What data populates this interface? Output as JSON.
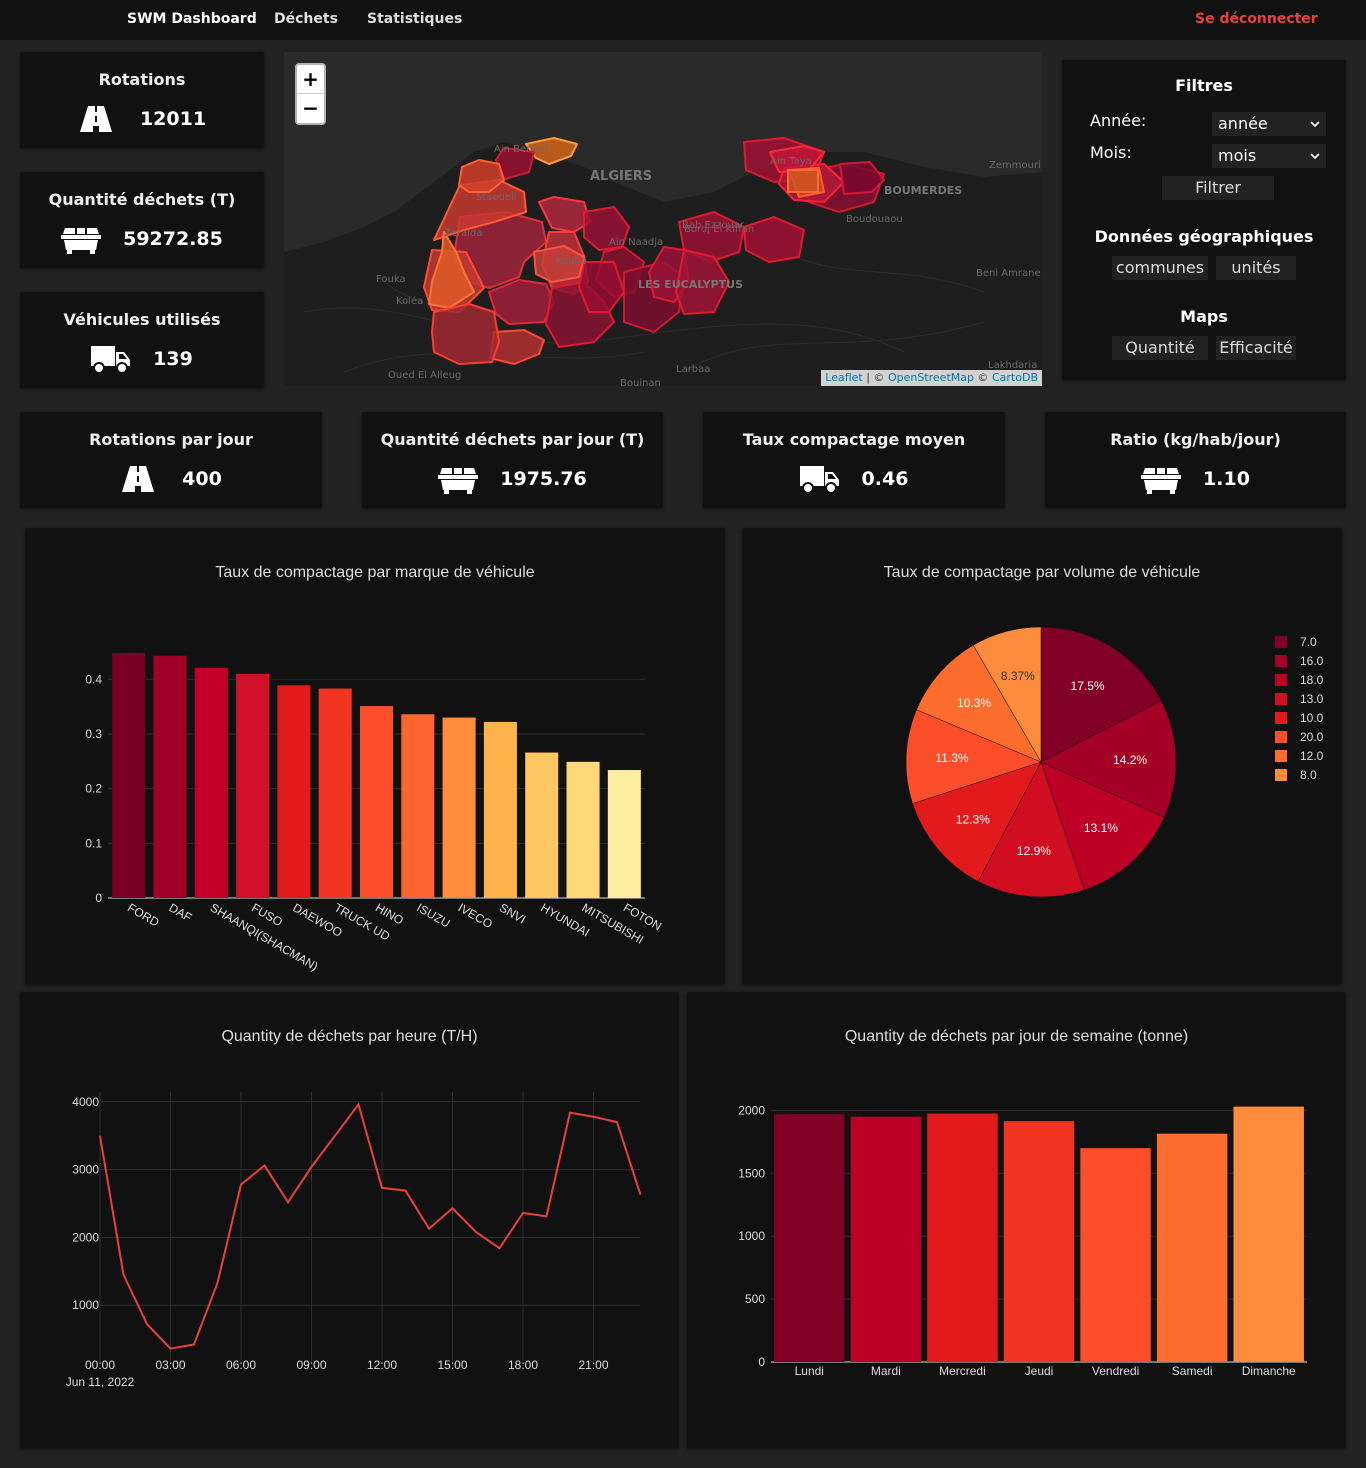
{
  "nav": {
    "brand": "SWM Dashboard",
    "dechets": "Déchets",
    "statistiques": "Statistiques",
    "logout": "Se déconnecter"
  },
  "stats_top": [
    {
      "title": "Rotations",
      "value": "12011",
      "icon": "road-icon"
    },
    {
      "title": "Quantité déchets (T)",
      "value": "59272.85",
      "icon": "dumpster-icon"
    },
    {
      "title": "Véhicules utilisés",
      "value": "139",
      "icon": "truck-icon"
    }
  ],
  "stats_row": [
    {
      "title": "Rotations par jour",
      "value": "400",
      "icon": "road-icon"
    },
    {
      "title": "Quantité déchets par jour (T)",
      "value": "1975.76",
      "icon": "dumpster-icon"
    },
    {
      "title": "Taux compactage moyen",
      "value": "0.46",
      "icon": "truck-icon"
    },
    {
      "title": "Ratio (kg/hab/jour)",
      "value": "1.10",
      "icon": "dumpster-icon"
    }
  ],
  "map": {
    "zoom_in": "+",
    "zoom_out": "−",
    "attribution": {
      "leaflet": "Leaflet",
      "sep1": " | © ",
      "osm": "OpenStreetMap",
      "sep2": " © ",
      "carto": "CartoDB"
    },
    "labels": {
      "algiers": "ALGIERS",
      "boumerdes": "BOUMERDES",
      "zemmouri": "Zemmouri",
      "staoueli": "Staoueli",
      "zeralda": "Zeralda",
      "fouka": "Fouka",
      "kolea": "Koléa",
      "ain_naadja": "Ain Naadja",
      "les_eucalyptus": "LES EUCALYPTUS",
      "bordj_el_kiffan": "Bordj El Kiffan",
      "bab_ezzouar": "Bab Ezzouar",
      "ain_taya": "Ain Taya",
      "boudouaou": "Boudouaou",
      "beni_amrane": "Beni Amrane",
      "oued_el_alleug": "Oued El Alleug",
      "larbaa": "Larbaa",
      "lakhdaria": "Lakhdaria",
      "bouinan": "Bouinan",
      "ain_benian": "Ain Benian",
      "kouba": "Kouba"
    }
  },
  "filters": {
    "title": "Filtres",
    "annee_label": "Année:",
    "annee_value": "année",
    "mois_label": "Mois:",
    "mois_value": "mois",
    "filter_button": "Filtrer",
    "geo_title": "Données géographiques",
    "geo_communes": "communes",
    "geo_unites": "unités",
    "maps_title": "Maps",
    "maps_quantite": "Quantité",
    "maps_efficacite": "Efficacité"
  },
  "colors": {
    "accent": "#e8413c",
    "card_bg": "#111111",
    "page_bg": "#222222"
  },
  "chart_data": [
    {
      "type": "bar",
      "title": "Taux de compactage par marque de véhicule",
      "categories": [
        "FORD",
        "DAF",
        "SHAANQI(SHACMAN)",
        "FUSO",
        "DAEWOO",
        "TRUCK UD",
        "HINO",
        "ISUZU",
        "IVECO",
        "SNVI",
        "HYUNDAI",
        "MITSUBISHI",
        "FOTON"
      ],
      "values": [
        0.448,
        0.443,
        0.421,
        0.41,
        0.389,
        0.383,
        0.351,
        0.336,
        0.33,
        0.322,
        0.266,
        0.249,
        0.234
      ],
      "colors": [
        "#7a0026",
        "#a00028",
        "#c2002a",
        "#d1102a",
        "#e31a1c",
        "#f03523",
        "#fc4e2a",
        "#fd6530",
        "#fd8d3c",
        "#feb24c",
        "#fec761",
        "#fed976",
        "#ffeda0"
      ],
      "yticks": [
        0,
        0.1,
        0.2,
        0.3,
        0.4
      ],
      "ylim": [
        0,
        0.47
      ]
    },
    {
      "type": "pie",
      "title": "Taux de compactage par volume de véhicule",
      "labels": [
        "7.0",
        "16.0",
        "18.0",
        "13.0",
        "10.0",
        "20.0",
        "12.0",
        "8.0"
      ],
      "values": [
        17.5,
        14.2,
        13.1,
        12.9,
        12.3,
        11.3,
        10.3,
        8.37
      ],
      "value_labels": [
        "17.5%",
        "14.2%",
        "13.1%",
        "12.9%",
        "12.3%",
        "11.3%",
        "10.3%",
        "8.37%"
      ],
      "colors": [
        "#800026",
        "#a50026",
        "#bd0026",
        "#d00d21",
        "#e31a1c",
        "#fc4e2a",
        "#fd6d2e",
        "#fd8d3c"
      ]
    },
    {
      "type": "line",
      "title": "Quantity de déchets par heure (T/H)",
      "xlabel_date": "Jun 11, 2022",
      "x": [
        0,
        1,
        2,
        3,
        4,
        5,
        6,
        7,
        8,
        9,
        10,
        11,
        12,
        13,
        14,
        15,
        16,
        17,
        18,
        19,
        20,
        21,
        22,
        23
      ],
      "y": [
        3500,
        1450,
        720,
        360,
        420,
        1330,
        2780,
        3060,
        2520,
        3040,
        3500,
        3960,
        2730,
        2690,
        2130,
        2430,
        2080,
        1840,
        2360,
        2310,
        3840,
        3780,
        3700,
        2630
      ],
      "xticks": [
        "00:00",
        "03:00",
        "06:00",
        "09:00",
        "12:00",
        "15:00",
        "18:00",
        "21:00"
      ],
      "yticks": [
        1000,
        2000,
        3000,
        4000
      ],
      "color": "#e8413c"
    },
    {
      "type": "bar",
      "title": "Quantity de déchets par jour de semaine (tonne)",
      "categories": [
        "Lundi",
        "Mardi",
        "Mercredi",
        "Jeudi",
        "Vendredi",
        "Samedi",
        "Dimanche"
      ],
      "values": [
        1970,
        1950,
        1975,
        1915,
        1700,
        1815,
        2030
      ],
      "colors": [
        "#800026",
        "#bd0026",
        "#e31a1c",
        "#f03523",
        "#fc4e2a",
        "#fd6d2e",
        "#fd8d3c"
      ],
      "yticks": [
        0,
        500,
        1000,
        1500,
        2000
      ],
      "ylim": [
        0,
        2120
      ]
    }
  ]
}
